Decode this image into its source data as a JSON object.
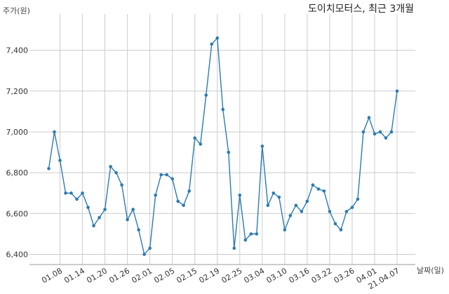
{
  "chart_data": {
    "type": "line",
    "title": "도이치모터스, 최근 3개월",
    "xlabel": "날짜(일)",
    "ylabel": "주가(원)",
    "ylim": [
      6350,
      7550
    ],
    "yticks": [
      6400,
      6600,
      6800,
      7000,
      7200,
      7400
    ],
    "ytick_labels": [
      "6,400",
      "6,600",
      "6,800",
      "7,000",
      "7,200",
      "7,400"
    ],
    "xtick_labels": [
      "01.08",
      "01.14",
      "01.20",
      "01.26",
      "02.01",
      "02.05",
      "02.15",
      "02.19",
      "02.25",
      "03.04",
      "03.10",
      "03.16",
      "03.22",
      "03.26",
      "04.01",
      "21.04.07"
    ],
    "xtick_index": [
      2,
      6,
      10,
      14,
      18,
      22,
      26,
      30,
      34,
      38,
      42,
      46,
      50,
      54,
      58,
      62
    ],
    "grid": true,
    "series": [
      {
        "values": [
          6820,
          7000,
          6860,
          6700,
          6700,
          6670,
          6700,
          6630,
          6540,
          6580,
          6620,
          6830,
          6800,
          6740,
          6570,
          6620,
          6520,
          6400,
          6430,
          6690,
          6790,
          6790,
          6770,
          6660,
          6640,
          6710,
          6970,
          6940,
          7180,
          7430,
          7460,
          7110,
          6900,
          6430,
          6690,
          6470,
          6500,
          6500,
          6930,
          6640,
          6700,
          6680,
          6520,
          6590,
          6640,
          6610,
          6660,
          6740,
          6720,
          6710,
          6610,
          6550,
          6520,
          6610,
          6630,
          6670,
          7000,
          7070,
          6990,
          7000,
          6970,
          7000,
          7200
        ]
      }
    ]
  }
}
